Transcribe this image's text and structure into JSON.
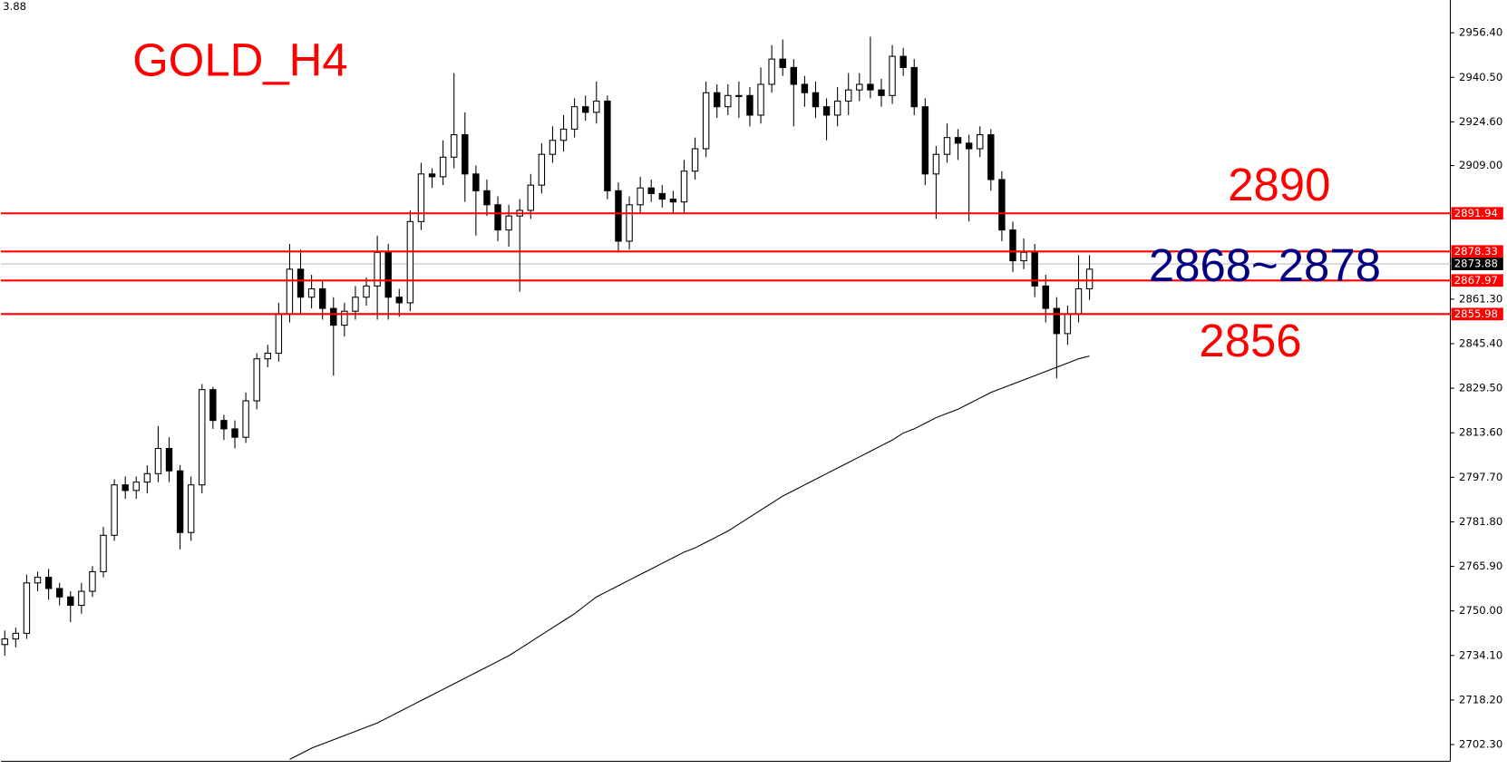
{
  "chart_data": {
    "type": "candlestick",
    "title": "GOLD_H4",
    "title_color": "#ff0000",
    "corner_text": "3.88",
    "annotations": [
      {
        "text": "2890",
        "color": "#ff0000"
      },
      {
        "text": "2868~2878",
        "color": "#000080"
      },
      {
        "text": "2856",
        "color": "#ff0000"
      }
    ],
    "up_color": "#ffffff",
    "down_color": "#000000",
    "wick_color": "#000000",
    "open": [
      2738,
      2740,
      2742,
      2760,
      2762,
      2758,
      2755,
      2752,
      2757,
      2764,
      2777,
      2795,
      2793,
      2796,
      2799,
      2808,
      2800,
      2778,
      2795,
      2829,
      2818,
      2815,
      2812,
      2825,
      2840,
      2842,
      2856,
      2872,
      2862,
      2865,
      2858,
      2852,
      2857,
      2862,
      2866,
      2878,
      2862,
      2860,
      2889,
      2906,
      2905,
      2912,
      2920,
      2906,
      2900,
      2895,
      2886,
      2891,
      2893,
      2902,
      2913,
      2918,
      2922,
      2930,
      2928,
      2932,
      2900,
      2882,
      2895,
      2901,
      2899,
      2897,
      2896,
      2907,
      2915,
      2935,
      2930,
      2934,
      2934,
      2927,
      2938,
      2947,
      2944,
      2938,
      2935,
      2930,
      2927,
      2932,
      2936,
      2938,
      2936,
      2934,
      2948,
      2944,
      2930,
      2906,
      2913,
      2919,
      2917,
      2915,
      2920,
      2904,
      2886,
      2875,
      2878,
      2866,
      2858,
      2849,
      2856,
      2865
    ],
    "high": [
      2743,
      2744,
      2763,
      2764,
      2765,
      2760,
      2757,
      2760,
      2766,
      2780,
      2797,
      2798,
      2798,
      2802,
      2816,
      2812,
      2802,
      2798,
      2831,
      2830,
      2820,
      2818,
      2828,
      2842,
      2845,
      2860,
      2881,
      2879,
      2870,
      2868,
      2862,
      2860,
      2866,
      2869,
      2884,
      2881,
      2865,
      2893,
      2910,
      2908,
      2918,
      2942,
      2928,
      2909,
      2904,
      2898,
      2895,
      2897,
      2906,
      2917,
      2923,
      2927,
      2933,
      2934,
      2939,
      2934,
      2903,
      2898,
      2905,
      2904,
      2902,
      2900,
      2911,
      2919,
      2939,
      2938,
      2938,
      2939,
      2937,
      2944,
      2952,
      2954,
      2947,
      2941,
      2939,
      2933,
      2937,
      2942,
      2942,
      2955,
      2940,
      2952,
      2951,
      2947,
      2933,
      2916,
      2924,
      2922,
      2920,
      2923,
      2922,
      2907,
      2889,
      2883,
      2881,
      2870,
      2862,
      2859,
      2877,
      2877
    ],
    "low": [
      2734,
      2737,
      2740,
      2757,
      2754,
      2752,
      2746,
      2749,
      2755,
      2762,
      2775,
      2790,
      2790,
      2792,
      2796,
      2796,
      2772,
      2775,
      2792,
      2815,
      2811,
      2808,
      2810,
      2822,
      2837,
      2839,
      2853,
      2856,
      2858,
      2854,
      2834,
      2848,
      2854,
      2859,
      2854,
      2854,
      2855,
      2857,
      2886,
      2901,
      2902,
      2908,
      2896,
      2884,
      2891,
      2882,
      2880,
      2864,
      2890,
      2899,
      2910,
      2914,
      2919,
      2925,
      2924,
      2897,
      2878,
      2879,
      2892,
      2896,
      2894,
      2892,
      2892,
      2904,
      2912,
      2926,
      2927,
      2926,
      2923,
      2924,
      2935,
      2941,
      2923,
      2930,
      2926,
      2918,
      2923,
      2927,
      2932,
      2933,
      2930,
      2931,
      2941,
      2927,
      2902,
      2890,
      2910,
      2911,
      2889,
      2912,
      2900,
      2882,
      2871,
      2872,
      2862,
      2853,
      2833,
      2845,
      2853,
      2861
    ],
    "close": [
      2740,
      2742,
      2760,
      2762,
      2758,
      2755,
      2752,
      2757,
      2764,
      2777,
      2795,
      2793,
      2796,
      2799,
      2808,
      2800,
      2778,
      2795,
      2829,
      2818,
      2815,
      2812,
      2825,
      2840,
      2842,
      2856,
      2872,
      2862,
      2865,
      2858,
      2852,
      2857,
      2862,
      2866,
      2878,
      2862,
      2860,
      2889,
      2906,
      2905,
      2912,
      2920,
      2906,
      2900,
      2895,
      2886,
      2891,
      2893,
      2902,
      2913,
      2918,
      2922,
      2930,
      2928,
      2932,
      2900,
      2882,
      2895,
      2901,
      2899,
      2897,
      2896,
      2907,
      2915,
      2935,
      2930,
      2934,
      2934,
      2927,
      2938,
      2947,
      2944,
      2938,
      2935,
      2930,
      2927,
      2932,
      2936,
      2938,
      2936,
      2934,
      2948,
      2944,
      2930,
      2906,
      2913,
      2919,
      2917,
      2915,
      2920,
      2904,
      2886,
      2875,
      2878,
      2866,
      2858,
      2849,
      2856,
      2865,
      2872
    ],
    "moving_average": {
      "color": "#000000",
      "values": [
        null,
        null,
        null,
        null,
        null,
        null,
        null,
        null,
        null,
        null,
        null,
        null,
        null,
        null,
        null,
        null,
        null,
        null,
        null,
        null,
        null,
        null,
        null,
        null,
        null,
        null,
        2697,
        2699,
        2701,
        2702.5,
        2704,
        2705.5,
        2707,
        2708.5,
        2710,
        2712,
        2714,
        2716,
        2718,
        2720,
        2722,
        2724,
        2726,
        2728,
        2730,
        2732,
        2734,
        2736.5,
        2739,
        2741.5,
        2744,
        2746.5,
        2749,
        2752,
        2755,
        2757,
        2759,
        2761,
        2763,
        2765,
        2767,
        2769,
        2771,
        2772.5,
        2774.5,
        2776.5,
        2778.5,
        2781,
        2783.5,
        2786,
        2788.5,
        2791,
        2793,
        2795,
        2797,
        2799,
        2801,
        2803,
        2805,
        2807,
        2809,
        2811,
        2813.5,
        2815,
        2817,
        2819,
        2820.5,
        2822,
        2824,
        2826,
        2828,
        2829.5,
        2831,
        2832.5,
        2834,
        2835.5,
        2837,
        2838.5,
        2840,
        2841
      ]
    },
    "levels": [
      2891.94,
      2878.33,
      2867.97,
      2855.98
    ],
    "level_color": "#ff0000",
    "current_price": 2873.88,
    "current_price_color": "#c0c0c0",
    "ylim": [
      2697.0,
      2968.1
    ],
    "yticks": [
      {
        "value": 2956.4,
        "label": "2956.40"
      },
      {
        "value": 2940.5,
        "label": "2940.50"
      },
      {
        "value": 2924.6,
        "label": "2924.60"
      },
      {
        "value": 2909.0,
        "label": "2909.00"
      },
      {
        "value": 2861.3,
        "label": "2861.30"
      },
      {
        "value": 2845.4,
        "label": "2845.40"
      },
      {
        "value": 2829.5,
        "label": "2829.50"
      },
      {
        "value": 2813.6,
        "label": "2813.60"
      },
      {
        "value": 2797.7,
        "label": "2797.70"
      },
      {
        "value": 2781.8,
        "label": "2781.80"
      },
      {
        "value": 2765.9,
        "label": "2765.90"
      },
      {
        "value": 2750.0,
        "label": "2750.00"
      },
      {
        "value": 2734.1,
        "label": "2734.10"
      },
      {
        "value": 2718.2,
        "label": "2718.20"
      },
      {
        "value": 2702.3,
        "label": "2702.30"
      }
    ],
    "grid": false
  }
}
